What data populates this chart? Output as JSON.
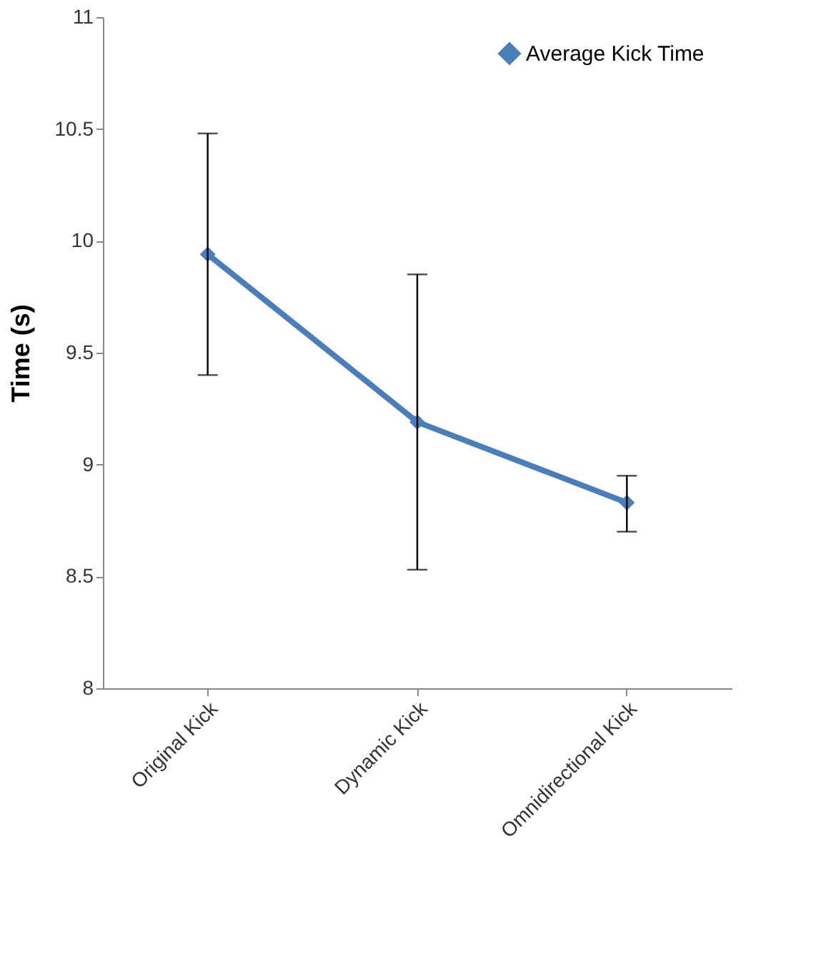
{
  "chart_data": {
    "type": "line",
    "ylabel": "Time (s)",
    "categories": [
      "Original Kick",
      "Dynamic Kick",
      "Omnidirectional Kick"
    ],
    "series": [
      {
        "name": "Average Kick Time",
        "color": "#4a7ebb",
        "values": [
          9.94,
          9.19,
          8.83
        ],
        "errors": [
          [
            9.4,
            10.48
          ],
          [
            8.53,
            9.85
          ],
          [
            8.7,
            8.95
          ]
        ]
      }
    ],
    "ylim": [
      8,
      11
    ],
    "yticks": [
      8,
      8.5,
      9,
      9.5,
      10,
      10.5,
      11
    ],
    "marker": "diamond",
    "line_style": "solid",
    "grid": false,
    "legend": "top right"
  }
}
